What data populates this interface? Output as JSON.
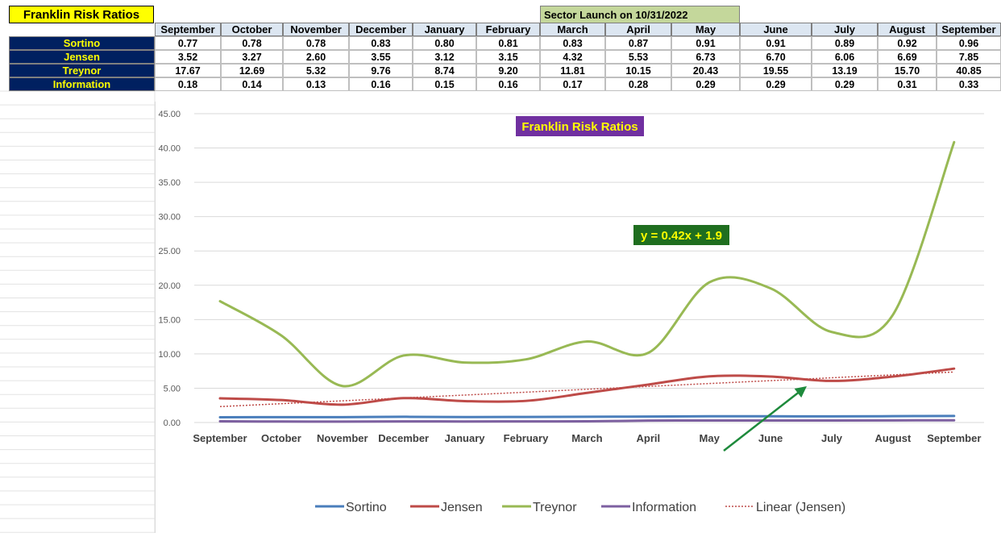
{
  "table": {
    "title": "Franklin Risk Ratios",
    "launch_note": "Sector Launch on 10/31/2022",
    "months": [
      "September",
      "October",
      "November",
      "December",
      "January",
      "February",
      "March",
      "April",
      "May",
      "June",
      "July",
      "August",
      "September"
    ],
    "rows": [
      {
        "label": "Sortino",
        "values": [
          "0.77",
          "0.78",
          "0.78",
          "0.83",
          "0.80",
          "0.81",
          "0.83",
          "0.87",
          "0.91",
          "0.91",
          "0.89",
          "0.92",
          "0.96"
        ]
      },
      {
        "label": "Jensen",
        "values": [
          "3.52",
          "3.27",
          "2.60",
          "3.55",
          "3.12",
          "3.15",
          "4.32",
          "5.53",
          "6.73",
          "6.70",
          "6.06",
          "6.69",
          "7.85"
        ]
      },
      {
        "label": "Treynor",
        "values": [
          "17.67",
          "12.69",
          "5.32",
          "9.76",
          "8.74",
          "9.20",
          "11.81",
          "10.15",
          "20.43",
          "19.55",
          "13.19",
          "15.70",
          "40.85"
        ]
      },
      {
        "label": "Information",
        "values": [
          "0.18",
          "0.14",
          "0.13",
          "0.16",
          "0.15",
          "0.16",
          "0.17",
          "0.28",
          "0.29",
          "0.29",
          "0.29",
          "0.31",
          "0.33"
        ]
      }
    ]
  },
  "chart_data": {
    "type": "line",
    "title": "Franklin Risk Ratios",
    "categories": [
      "September",
      "October",
      "November",
      "December",
      "January",
      "February",
      "March",
      "April",
      "May",
      "June",
      "July",
      "August",
      "September"
    ],
    "ylim": [
      0,
      45
    ],
    "yticks": [
      "0.00",
      "5.00",
      "10.00",
      "15.00",
      "20.00",
      "25.00",
      "30.00",
      "35.00",
      "40.00",
      "45.00"
    ],
    "grid": true,
    "legend_position": "bottom",
    "series": [
      {
        "name": "Sortino",
        "color": "#4a7ebb",
        "values": [
          0.77,
          0.78,
          0.78,
          0.83,
          0.8,
          0.81,
          0.83,
          0.87,
          0.91,
          0.91,
          0.89,
          0.92,
          0.96
        ]
      },
      {
        "name": "Jensen",
        "color": "#be4b48",
        "values": [
          3.52,
          3.27,
          2.6,
          3.55,
          3.12,
          3.15,
          4.32,
          5.53,
          6.73,
          6.7,
          6.06,
          6.69,
          7.85
        ]
      },
      {
        "name": "Treynor",
        "color": "#98b954",
        "values": [
          17.67,
          12.69,
          5.32,
          9.76,
          8.74,
          9.2,
          11.81,
          10.15,
          20.43,
          19.55,
          13.19,
          15.7,
          40.85
        ]
      },
      {
        "name": "Information",
        "color": "#7d60a0",
        "values": [
          0.18,
          0.14,
          0.13,
          0.16,
          0.15,
          0.16,
          0.17,
          0.28,
          0.29,
          0.29,
          0.29,
          0.31,
          0.33
        ]
      }
    ],
    "trendline": {
      "name": "Linear (Jensen)",
      "color": "#be4b48",
      "slope": 0.42,
      "intercept": 1.9,
      "equation": "y = 0.42x + 1.9"
    },
    "colors": {
      "title_bg": "#7030a0",
      "title_fg": "#ffff00",
      "eq_bg": "#1f6e1f",
      "eq_fg": "#ffff00",
      "arrow": "#1e8a3c"
    }
  }
}
